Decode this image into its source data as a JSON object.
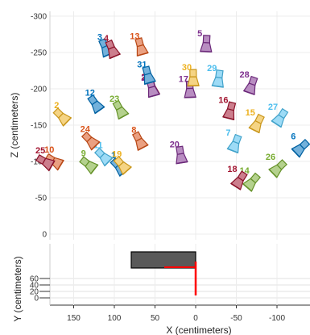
{
  "chart_data": [
    {
      "type": "scatter",
      "title": "",
      "xlabel": "",
      "ylabel": "Z (centimeters)",
      "x_range": [
        180,
        -130
      ],
      "ylim": [
        0,
        -300
      ],
      "y_ticks": [
        "-300",
        "-250",
        "-200",
        "-150",
        "-100",
        "-50",
        "0"
      ],
      "grid": true,
      "cameras": [
        {
          "label": "1",
          "x": 93,
          "z": -91,
          "color": "#0072BD"
        },
        {
          "label": "2",
          "x": 163,
          "z": -160,
          "color": "#EDB120"
        },
        {
          "label": "3",
          "x": 110,
          "z": -254,
          "color": "#0072BD"
        },
        {
          "label": "4",
          "x": 102,
          "z": -252,
          "color": "#A2142F"
        },
        {
          "label": "5",
          "x": -13,
          "z": -259,
          "color": "#7E2F8E"
        },
        {
          "label": "6",
          "x": -128,
          "z": -117,
          "color": "#0072BD"
        },
        {
          "label": "7",
          "x": -48,
          "z": -122,
          "color": "#4DBEEE"
        },
        {
          "label": "8",
          "x": 68,
          "z": -126,
          "color": "#D95319"
        },
        {
          "label": "9",
          "x": 130,
          "z": -94,
          "color": "#77AC30"
        },
        {
          "label": "10",
          "x": 172,
          "z": -99,
          "color": "#D95319"
        },
        {
          "label": "11",
          "x": 112,
          "z": -105,
          "color": "#4DBEEE"
        },
        {
          "label": "12",
          "x": 122,
          "z": -177,
          "color": "#0072BD"
        },
        {
          "label": "13",
          "x": 67,
          "z": -255,
          "color": "#D95319"
        },
        {
          "label": "14",
          "x": -68,
          "z": -70,
          "color": "#77AC30"
        },
        {
          "label": "15",
          "x": -75,
          "z": -150,
          "color": "#EDB120"
        },
        {
          "label": "16",
          "x": -42,
          "z": -167,
          "color": "#A2142F"
        },
        {
          "label": "17",
          "x": 7,
          "z": -196,
          "color": "#7E2F8E"
        },
        {
          "label": "18",
          "x": -53,
          "z": -72,
          "color": "#A2142F"
        },
        {
          "label": "19",
          "x": 89,
          "z": -93,
          "color": "#EDB120"
        },
        {
          "label": "20",
          "x": 18,
          "z": -106,
          "color": "#7E2F8E"
        },
        {
          "label": "21",
          "x": 53,
          "z": -199,
          "color": "#A2142F"
        },
        {
          "label": "22",
          "x": 53,
          "z": -198,
          "color": "#7E2F8E"
        },
        {
          "label": "23",
          "x": 92,
          "z": -169,
          "color": "#77AC30"
        },
        {
          "label": "24",
          "x": 128,
          "z": -127,
          "color": "#D95319"
        },
        {
          "label": "25",
          "x": 183,
          "z": -98,
          "color": "#A2142F"
        },
        {
          "label": "26",
          "x": -100,
          "z": -89,
          "color": "#77AC30"
        },
        {
          "label": "27",
          "x": -103,
          "z": -158,
          "color": "#4DBEEE"
        },
        {
          "label": "28",
          "x": -68,
          "z": -202,
          "color": "#7E2F8E"
        },
        {
          "label": "29",
          "x": -28,
          "z": -211,
          "color": "#4DBEEE"
        },
        {
          "label": "30",
          "x": 3,
          "z": -212,
          "color": "#EDB120"
        },
        {
          "label": "31",
          "x": 58,
          "z": -216,
          "color": "#0072BD"
        }
      ]
    },
    {
      "type": "scatter",
      "title": "",
      "xlabel": "X (centimeters)",
      "ylabel": "Y (centimeters)",
      "x_ticks": [
        "150",
        "100",
        "50",
        "0",
        "-50",
        "-100"
      ],
      "y_ticks": [
        "60",
        "40",
        "20",
        "0"
      ],
      "grid": true,
      "board_color": "#595959",
      "axis_color": "#FF0000"
    }
  ]
}
